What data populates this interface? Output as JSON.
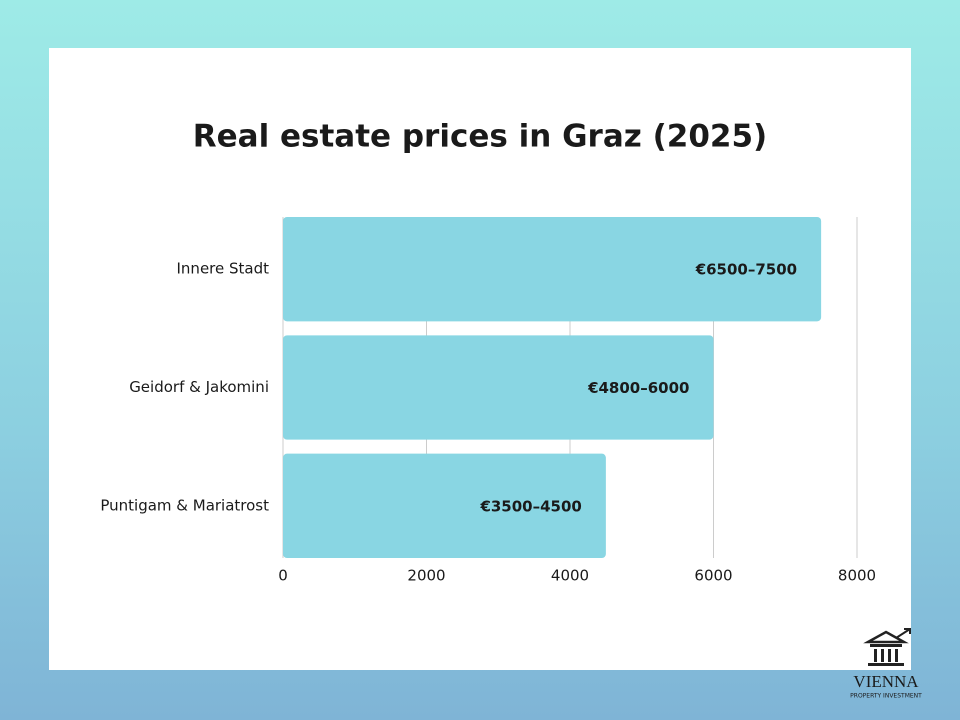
{
  "chart_data": {
    "type": "hbar",
    "title": "Real estate prices in Graz (2025)",
    "categories": [
      "Innere Stadt",
      "Geidorf & Jakomini",
      "Puntigam & Mariatrost"
    ],
    "values": [
      7500,
      6000,
      4500
    ],
    "value_labels": [
      "€6500–7500",
      "€4800–6000",
      "€3500–4500"
    ],
    "color": "#89d6e3",
    "xlim": [
      0,
      8000
    ],
    "xticks": [
      0,
      2000,
      4000,
      6000,
      8000
    ],
    "grid": true
  },
  "logo": {
    "name": "VIENNA",
    "tagline": "PROPERTY INVESTMENT"
  }
}
